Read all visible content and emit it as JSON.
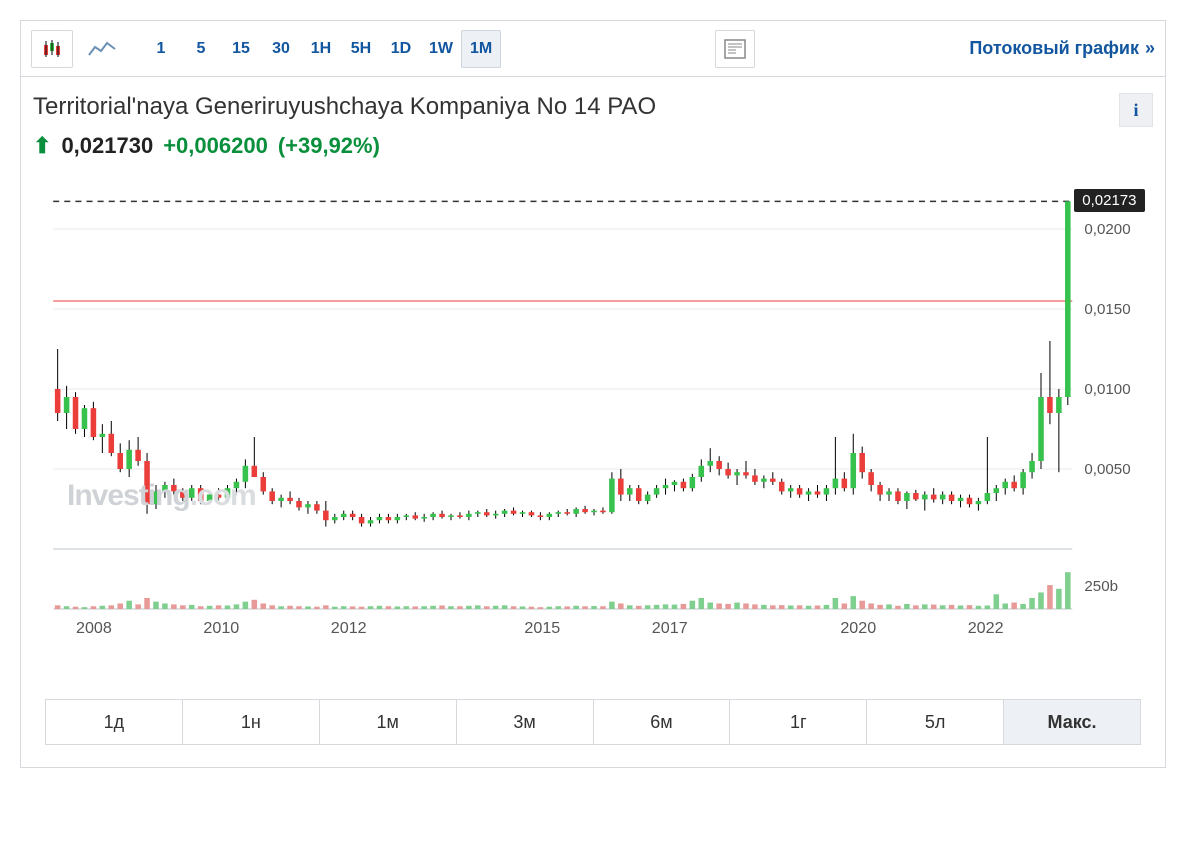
{
  "toolbar": {
    "intervals": [
      "1",
      "5",
      "15",
      "30",
      "1H",
      "5H",
      "1D",
      "1W",
      "1M"
    ],
    "active_interval": "1M",
    "stream_label": "Потоковый график"
  },
  "header": {
    "title": "Territorial'naya Generiruyushchaya Kompaniya No 14 PAO",
    "price": "0,021730",
    "change": "+0,006200",
    "pct": "(+39,92%)"
  },
  "watermark": {
    "main": "Investing",
    "suffix": ".com"
  },
  "price_tag": "0,02173",
  "ranges": {
    "items": [
      "1д",
      "1н",
      "1м",
      "3м",
      "6м",
      "1г",
      "5л",
      "Макс."
    ],
    "active": "Макс."
  },
  "chart": {
    "type": "candlestick",
    "colors": {
      "up": "#36c24c",
      "down": "#eb3e3b",
      "wick": "#000000",
      "grid": "#e6e8eb",
      "axis_text": "#555",
      "red_line": "#eb3e3b",
      "dashed_line": "#333",
      "volume_up": "#7fcf8e",
      "volume_down": "#e89a98",
      "bg": "#ffffff"
    },
    "y": {
      "price_ticks": [
        0.005,
        0.01,
        0.015,
        0.02
      ],
      "price_labels": [
        "0,0050",
        "0,0100",
        "0,0150",
        "0,0200"
      ],
      "ymin": 0.0,
      "ymax": 0.0225,
      "red_line_y": 0.0155,
      "dashed_y": 0.02173
    },
    "x": {
      "labels": [
        "2008",
        "2010",
        "2012",
        "2015",
        "2017",
        "2020",
        "2022"
      ],
      "positions": [
        0.04,
        0.165,
        0.29,
        0.48,
        0.605,
        0.79,
        0.915
      ]
    },
    "volume": {
      "ticks": [
        "250b"
      ],
      "ymax": 500
    },
    "candles": [
      {
        "o": 0.01,
        "h": 0.0125,
        "l": 0.008,
        "c": 0.0085,
        "d": "dn"
      },
      {
        "o": 0.0085,
        "h": 0.0102,
        "l": 0.0075,
        "c": 0.0095,
        "d": "up"
      },
      {
        "o": 0.0095,
        "h": 0.0098,
        "l": 0.0072,
        "c": 0.0075,
        "d": "dn"
      },
      {
        "o": 0.0075,
        "h": 0.009,
        "l": 0.007,
        "c": 0.0088,
        "d": "up"
      },
      {
        "o": 0.0088,
        "h": 0.0092,
        "l": 0.0068,
        "c": 0.007,
        "d": "dn"
      },
      {
        "o": 0.007,
        "h": 0.0078,
        "l": 0.006,
        "c": 0.0072,
        "d": "up"
      },
      {
        "o": 0.0072,
        "h": 0.008,
        "l": 0.0058,
        "c": 0.006,
        "d": "dn"
      },
      {
        "o": 0.006,
        "h": 0.0066,
        "l": 0.0048,
        "c": 0.005,
        "d": "dn"
      },
      {
        "o": 0.005,
        "h": 0.0068,
        "l": 0.0045,
        "c": 0.0062,
        "d": "up"
      },
      {
        "o": 0.0062,
        "h": 0.007,
        "l": 0.0052,
        "c": 0.0055,
        "d": "dn"
      },
      {
        "o": 0.0055,
        "h": 0.006,
        "l": 0.0022,
        "c": 0.0028,
        "d": "dn"
      },
      {
        "o": 0.0028,
        "h": 0.004,
        "l": 0.0025,
        "c": 0.0036,
        "d": "up"
      },
      {
        "o": 0.0036,
        "h": 0.0042,
        "l": 0.0032,
        "c": 0.004,
        "d": "up"
      },
      {
        "o": 0.004,
        "h": 0.0044,
        "l": 0.0034,
        "c": 0.0036,
        "d": "dn"
      },
      {
        "o": 0.0036,
        "h": 0.0038,
        "l": 0.003,
        "c": 0.0032,
        "d": "dn"
      },
      {
        "o": 0.0032,
        "h": 0.004,
        "l": 0.003,
        "c": 0.0038,
        "d": "up"
      },
      {
        "o": 0.0038,
        "h": 0.004,
        "l": 0.0028,
        "c": 0.003,
        "d": "dn"
      },
      {
        "o": 0.003,
        "h": 0.0036,
        "l": 0.0028,
        "c": 0.0034,
        "d": "up"
      },
      {
        "o": 0.0034,
        "h": 0.0038,
        "l": 0.003,
        "c": 0.0032,
        "d": "dn"
      },
      {
        "o": 0.0032,
        "h": 0.004,
        "l": 0.003,
        "c": 0.0038,
        "d": "up"
      },
      {
        "o": 0.0038,
        "h": 0.0044,
        "l": 0.0034,
        "c": 0.0042,
        "d": "up"
      },
      {
        "o": 0.0042,
        "h": 0.0056,
        "l": 0.0038,
        "c": 0.0052,
        "d": "up"
      },
      {
        "o": 0.0052,
        "h": 0.007,
        "l": 0.0048,
        "c": 0.0045,
        "d": "dn"
      },
      {
        "o": 0.0045,
        "h": 0.0048,
        "l": 0.0034,
        "c": 0.0036,
        "d": "dn"
      },
      {
        "o": 0.0036,
        "h": 0.0038,
        "l": 0.0028,
        "c": 0.003,
        "d": "dn"
      },
      {
        "o": 0.003,
        "h": 0.0034,
        "l": 0.0026,
        "c": 0.0032,
        "d": "up"
      },
      {
        "o": 0.0032,
        "h": 0.0036,
        "l": 0.0028,
        "c": 0.003,
        "d": "dn"
      },
      {
        "o": 0.003,
        "h": 0.0032,
        "l": 0.0024,
        "c": 0.0026,
        "d": "dn"
      },
      {
        "o": 0.0026,
        "h": 0.003,
        "l": 0.0022,
        "c": 0.0028,
        "d": "up"
      },
      {
        "o": 0.0028,
        "h": 0.003,
        "l": 0.0022,
        "c": 0.0024,
        "d": "dn"
      },
      {
        "o": 0.0024,
        "h": 0.003,
        "l": 0.0014,
        "c": 0.0018,
        "d": "dn"
      },
      {
        "o": 0.0018,
        "h": 0.0022,
        "l": 0.0016,
        "c": 0.002,
        "d": "up"
      },
      {
        "o": 0.002,
        "h": 0.0024,
        "l": 0.0018,
        "c": 0.0022,
        "d": "up"
      },
      {
        "o": 0.0022,
        "h": 0.0024,
        "l": 0.0018,
        "c": 0.002,
        "d": "dn"
      },
      {
        "o": 0.002,
        "h": 0.0022,
        "l": 0.0014,
        "c": 0.0016,
        "d": "dn"
      },
      {
        "o": 0.0016,
        "h": 0.002,
        "l": 0.0014,
        "c": 0.0018,
        "d": "up"
      },
      {
        "o": 0.0018,
        "h": 0.0022,
        "l": 0.0016,
        "c": 0.002,
        "d": "up"
      },
      {
        "o": 0.002,
        "h": 0.0022,
        "l": 0.0016,
        "c": 0.0018,
        "d": "dn"
      },
      {
        "o": 0.0018,
        "h": 0.0022,
        "l": 0.0016,
        "c": 0.002,
        "d": "up"
      },
      {
        "o": 0.002,
        "h": 0.0022,
        "l": 0.0018,
        "c": 0.0021,
        "d": "up"
      },
      {
        "o": 0.0021,
        "h": 0.0023,
        "l": 0.0018,
        "c": 0.0019,
        "d": "dn"
      },
      {
        "o": 0.0019,
        "h": 0.0022,
        "l": 0.0017,
        "c": 0.002,
        "d": "up"
      },
      {
        "o": 0.002,
        "h": 0.0023,
        "l": 0.0018,
        "c": 0.0022,
        "d": "up"
      },
      {
        "o": 0.0022,
        "h": 0.0024,
        "l": 0.0019,
        "c": 0.002,
        "d": "dn"
      },
      {
        "o": 0.002,
        "h": 0.0022,
        "l": 0.0018,
        "c": 0.0021,
        "d": "up"
      },
      {
        "o": 0.0021,
        "h": 0.0023,
        "l": 0.0019,
        "c": 0.002,
        "d": "dn"
      },
      {
        "o": 0.002,
        "h": 0.0024,
        "l": 0.0018,
        "c": 0.0022,
        "d": "up"
      },
      {
        "o": 0.0022,
        "h": 0.0024,
        "l": 0.002,
        "c": 0.0023,
        "d": "up"
      },
      {
        "o": 0.0023,
        "h": 0.0025,
        "l": 0.002,
        "c": 0.0021,
        "d": "dn"
      },
      {
        "o": 0.0021,
        "h": 0.0024,
        "l": 0.0019,
        "c": 0.0022,
        "d": "up"
      },
      {
        "o": 0.0022,
        "h": 0.0025,
        "l": 0.002,
        "c": 0.0024,
        "d": "up"
      },
      {
        "o": 0.0024,
        "h": 0.0026,
        "l": 0.0021,
        "c": 0.0022,
        "d": "dn"
      },
      {
        "o": 0.0022,
        "h": 0.0024,
        "l": 0.002,
        "c": 0.0023,
        "d": "up"
      },
      {
        "o": 0.0023,
        "h": 0.0024,
        "l": 0.002,
        "c": 0.0021,
        "d": "dn"
      },
      {
        "o": 0.0021,
        "h": 0.0023,
        "l": 0.0018,
        "c": 0.002,
        "d": "dn"
      },
      {
        "o": 0.002,
        "h": 0.0023,
        "l": 0.0018,
        "c": 0.0022,
        "d": "up"
      },
      {
        "o": 0.0022,
        "h": 0.0024,
        "l": 0.002,
        "c": 0.0023,
        "d": "up"
      },
      {
        "o": 0.0023,
        "h": 0.0025,
        "l": 0.0021,
        "c": 0.0022,
        "d": "dn"
      },
      {
        "o": 0.0022,
        "h": 0.0026,
        "l": 0.002,
        "c": 0.0025,
        "d": "up"
      },
      {
        "o": 0.0025,
        "h": 0.0027,
        "l": 0.0022,
        "c": 0.0023,
        "d": "dn"
      },
      {
        "o": 0.0023,
        "h": 0.0025,
        "l": 0.0021,
        "c": 0.0024,
        "d": "up"
      },
      {
        "o": 0.0024,
        "h": 0.0026,
        "l": 0.0022,
        "c": 0.0023,
        "d": "dn"
      },
      {
        "o": 0.0023,
        "h": 0.0048,
        "l": 0.0022,
        "c": 0.0044,
        "d": "up"
      },
      {
        "o": 0.0044,
        "h": 0.005,
        "l": 0.003,
        "c": 0.0034,
        "d": "dn"
      },
      {
        "o": 0.0034,
        "h": 0.004,
        "l": 0.003,
        "c": 0.0038,
        "d": "up"
      },
      {
        "o": 0.0038,
        "h": 0.004,
        "l": 0.0028,
        "c": 0.003,
        "d": "dn"
      },
      {
        "o": 0.003,
        "h": 0.0036,
        "l": 0.0028,
        "c": 0.0034,
        "d": "up"
      },
      {
        "o": 0.0034,
        "h": 0.004,
        "l": 0.0032,
        "c": 0.0038,
        "d": "up"
      },
      {
        "o": 0.0038,
        "h": 0.0044,
        "l": 0.0034,
        "c": 0.004,
        "d": "up"
      },
      {
        "o": 0.004,
        "h": 0.0043,
        "l": 0.0036,
        "c": 0.0042,
        "d": "up"
      },
      {
        "o": 0.0042,
        "h": 0.0044,
        "l": 0.0036,
        "c": 0.0038,
        "d": "dn"
      },
      {
        "o": 0.0038,
        "h": 0.0047,
        "l": 0.0036,
        "c": 0.0045,
        "d": "up"
      },
      {
        "o": 0.0045,
        "h": 0.0056,
        "l": 0.0042,
        "c": 0.0052,
        "d": "up"
      },
      {
        "o": 0.0052,
        "h": 0.0063,
        "l": 0.0048,
        "c": 0.0055,
        "d": "up"
      },
      {
        "o": 0.0055,
        "h": 0.0058,
        "l": 0.0046,
        "c": 0.005,
        "d": "dn"
      },
      {
        "o": 0.005,
        "h": 0.0054,
        "l": 0.0044,
        "c": 0.0046,
        "d": "dn"
      },
      {
        "o": 0.0046,
        "h": 0.005,
        "l": 0.004,
        "c": 0.0048,
        "d": "up"
      },
      {
        "o": 0.0048,
        "h": 0.0055,
        "l": 0.0044,
        "c": 0.0046,
        "d": "dn"
      },
      {
        "o": 0.0046,
        "h": 0.005,
        "l": 0.004,
        "c": 0.0042,
        "d": "dn"
      },
      {
        "o": 0.0042,
        "h": 0.0046,
        "l": 0.0038,
        "c": 0.0044,
        "d": "up"
      },
      {
        "o": 0.0044,
        "h": 0.0048,
        "l": 0.004,
        "c": 0.0042,
        "d": "dn"
      },
      {
        "o": 0.0042,
        "h": 0.0044,
        "l": 0.0034,
        "c": 0.0036,
        "d": "dn"
      },
      {
        "o": 0.0036,
        "h": 0.004,
        "l": 0.0032,
        "c": 0.0038,
        "d": "up"
      },
      {
        "o": 0.0038,
        "h": 0.004,
        "l": 0.0032,
        "c": 0.0034,
        "d": "dn"
      },
      {
        "o": 0.0034,
        "h": 0.0038,
        "l": 0.003,
        "c": 0.0036,
        "d": "up"
      },
      {
        "o": 0.0036,
        "h": 0.004,
        "l": 0.0032,
        "c": 0.0034,
        "d": "dn"
      },
      {
        "o": 0.0034,
        "h": 0.004,
        "l": 0.003,
        "c": 0.0038,
        "d": "up"
      },
      {
        "o": 0.0038,
        "h": 0.007,
        "l": 0.0034,
        "c": 0.0044,
        "d": "up"
      },
      {
        "o": 0.0044,
        "h": 0.0048,
        "l": 0.0036,
        "c": 0.0038,
        "d": "dn"
      },
      {
        "o": 0.0038,
        "h": 0.0072,
        "l": 0.0034,
        "c": 0.006,
        "d": "up"
      },
      {
        "o": 0.006,
        "h": 0.0064,
        "l": 0.0044,
        "c": 0.0048,
        "d": "dn"
      },
      {
        "o": 0.0048,
        "h": 0.005,
        "l": 0.0036,
        "c": 0.004,
        "d": "dn"
      },
      {
        "o": 0.004,
        "h": 0.0042,
        "l": 0.003,
        "c": 0.0034,
        "d": "dn"
      },
      {
        "o": 0.0034,
        "h": 0.0038,
        "l": 0.003,
        "c": 0.0036,
        "d": "up"
      },
      {
        "o": 0.0036,
        "h": 0.0038,
        "l": 0.0028,
        "c": 0.003,
        "d": "dn"
      },
      {
        "o": 0.003,
        "h": 0.0036,
        "l": 0.0025,
        "c": 0.0035,
        "d": "up"
      },
      {
        "o": 0.0035,
        "h": 0.0037,
        "l": 0.003,
        "c": 0.0031,
        "d": "dn"
      },
      {
        "o": 0.0031,
        "h": 0.0036,
        "l": 0.0024,
        "c": 0.0034,
        "d": "up"
      },
      {
        "o": 0.0034,
        "h": 0.0038,
        "l": 0.0029,
        "c": 0.0031,
        "d": "dn"
      },
      {
        "o": 0.0031,
        "h": 0.0036,
        "l": 0.0028,
        "c": 0.0034,
        "d": "up"
      },
      {
        "o": 0.0034,
        "h": 0.0036,
        "l": 0.0028,
        "c": 0.003,
        "d": "dn"
      },
      {
        "o": 0.003,
        "h": 0.0034,
        "l": 0.0026,
        "c": 0.0032,
        "d": "up"
      },
      {
        "o": 0.0032,
        "h": 0.0034,
        "l": 0.0026,
        "c": 0.0028,
        "d": "dn"
      },
      {
        "o": 0.0028,
        "h": 0.0032,
        "l": 0.0024,
        "c": 0.003,
        "d": "up"
      },
      {
        "o": 0.003,
        "h": 0.007,
        "l": 0.0028,
        "c": 0.0035,
        "d": "up"
      },
      {
        "o": 0.0035,
        "h": 0.004,
        "l": 0.003,
        "c": 0.0038,
        "d": "up"
      },
      {
        "o": 0.0038,
        "h": 0.0044,
        "l": 0.0034,
        "c": 0.0042,
        "d": "up"
      },
      {
        "o": 0.0042,
        "h": 0.0046,
        "l": 0.0036,
        "c": 0.0038,
        "d": "dn"
      },
      {
        "o": 0.0038,
        "h": 0.005,
        "l": 0.0034,
        "c": 0.0048,
        "d": "up"
      },
      {
        "o": 0.0048,
        "h": 0.006,
        "l": 0.0044,
        "c": 0.0055,
        "d": "up"
      },
      {
        "o": 0.0055,
        "h": 0.011,
        "l": 0.005,
        "c": 0.0095,
        "d": "up"
      },
      {
        "o": 0.0095,
        "h": 0.013,
        "l": 0.0078,
        "c": 0.0085,
        "d": "dn"
      },
      {
        "o": 0.0085,
        "h": 0.01,
        "l": 0.0048,
        "c": 0.0095,
        "d": "up"
      },
      {
        "o": 0.0095,
        "h": 0.02173,
        "l": 0.009,
        "c": 0.02173,
        "d": "up"
      }
    ],
    "volumes": [
      40,
      30,
      25,
      20,
      30,
      35,
      40,
      60,
      90,
      50,
      120,
      80,
      60,
      50,
      40,
      45,
      30,
      35,
      40,
      38,
      50,
      80,
      100,
      60,
      40,
      30,
      35,
      30,
      28,
      25,
      40,
      25,
      30,
      28,
      25,
      30,
      35,
      30,
      28,
      30,
      28,
      30,
      35,
      38,
      30,
      30,
      35,
      40,
      30,
      35,
      40,
      30,
      28,
      25,
      20,
      25,
      30,
      28,
      35,
      30,
      32,
      30,
      80,
      60,
      40,
      35,
      40,
      45,
      50,
      48,
      55,
      90,
      120,
      70,
      60,
      55,
      70,
      60,
      50,
      45,
      40,
      42,
      38,
      40,
      35,
      38,
      44,
      120,
      60,
      140,
      90,
      60,
      45,
      50,
      35,
      55,
      40,
      50,
      48,
      40,
      45,
      38,
      42,
      35,
      38,
      160,
      60,
      70,
      55,
      120,
      180,
      260,
      220,
      400
    ]
  }
}
